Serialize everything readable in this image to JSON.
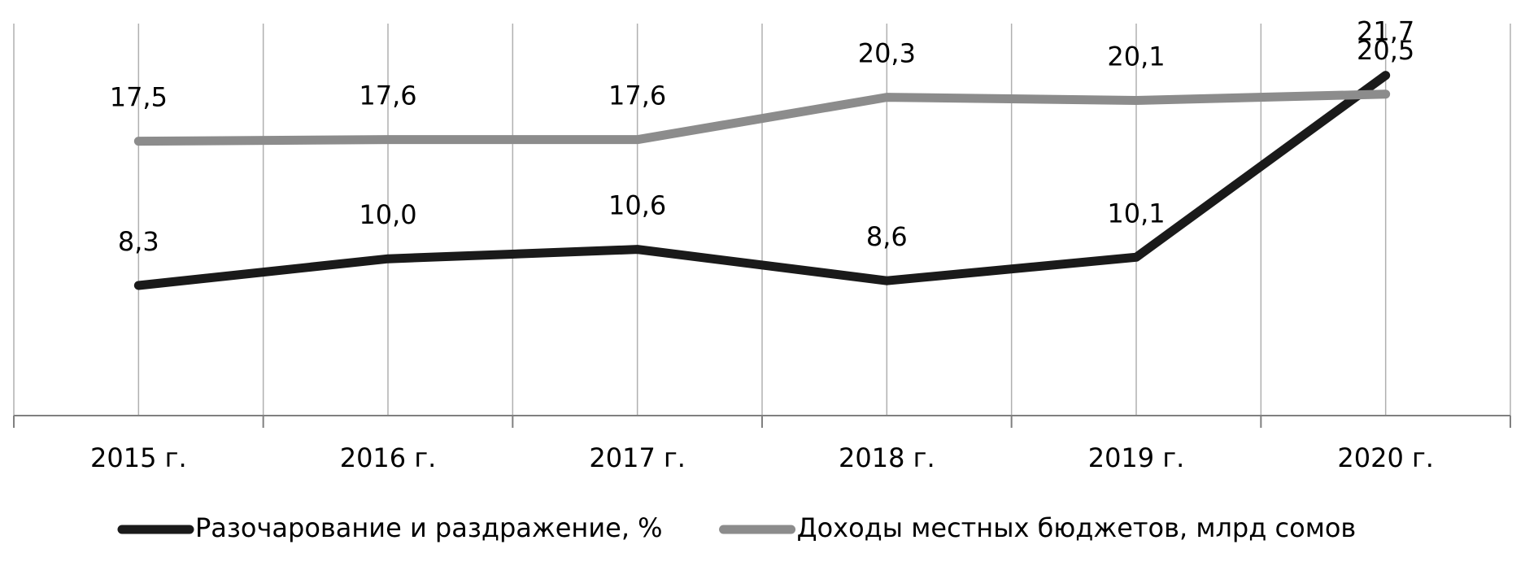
{
  "chart_data": {
    "type": "line",
    "categories": [
      "2015 г.",
      "2016 г.",
      "2017 г.",
      "2018 г.",
      "2019 г.",
      "2020 г."
    ],
    "series": [
      {
        "name": "Разочарование и раздражение, %",
        "color": "#1a1a1a",
        "values": [
          8.3,
          10.0,
          10.6,
          8.6,
          10.1,
          21.7
        ],
        "value_labels": [
          "8,3",
          "10,0",
          "10,6",
          "8,6",
          "10,1",
          "21,7"
        ]
      },
      {
        "name": "Доходы местных бюджетов, млрд сомов",
        "color": "#8c8c8c",
        "values": [
          17.5,
          17.6,
          17.6,
          20.3,
          20.1,
          20.5
        ],
        "value_labels": [
          "17,5",
          "17,6",
          "17,6",
          "20,3",
          "20,1",
          "20,5"
        ]
      }
    ],
    "ylim": [
      0,
      25
    ],
    "grid": true,
    "legend": "bottom"
  }
}
